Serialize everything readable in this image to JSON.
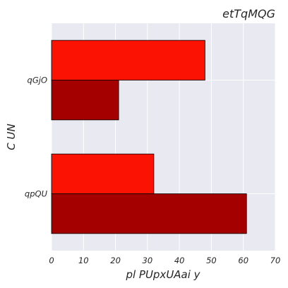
{
  "chart_data": {
    "type": "bar",
    "orientation": "horizontal",
    "title": "etTqMQG",
    "xlabel": "pl PUpxUAai y",
    "ylabel": "C  UN",
    "categories": [
      "qpQU",
      "qGjO"
    ],
    "xlim": [
      0,
      70
    ],
    "xticks": [
      0,
      10,
      20,
      30,
      40,
      50,
      60,
      70
    ],
    "grid": true,
    "series": [
      {
        "values": [
          61,
          21
        ],
        "color": "#a50000"
      },
      {
        "values": [
          32,
          48
        ],
        "color": "#fc1203"
      }
    ]
  }
}
